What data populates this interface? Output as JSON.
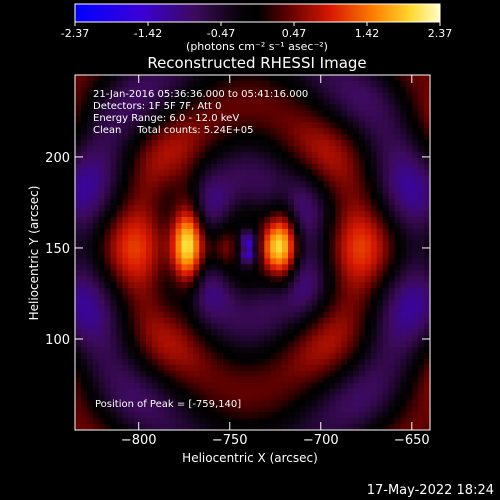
{
  "colorbar": {
    "ticks": [
      "-2.37",
      "-1.42",
      "-0.47",
      "0.47",
      "1.42",
      "2.37"
    ],
    "unit_label": "(photons cm⁻² s⁻¹ asec⁻²)"
  },
  "chart_data": {
    "type": "heatmap",
    "title": "Reconstructed RHESSI Image",
    "xlabel": "Heliocentric X (arcsec)",
    "ylabel": "Heliocentric Y (arcsec)",
    "xlim": [
      -835,
      -640
    ],
    "ylim": [
      50,
      245
    ],
    "x_ticks": [
      -800,
      -750,
      -700,
      -650
    ],
    "y_ticks": [
      100,
      150,
      200
    ],
    "value_range": [
      -2.37,
      2.37
    ],
    "peak": {
      "x": -759,
      "y": 140
    },
    "info_lines": [
      "21-Jan-2016 05:36:36.000 to 05:41:16.000",
      "Detectors: 1F 5F 7F, Att 0",
      "Energy Range: 6.0 - 12.0 keV",
      "Clean     Total counts: 5.24E+05"
    ],
    "peak_label": "Position of Peak = [-759,140]"
  },
  "footer": {
    "timestamp": "17-May-2022 18:24"
  }
}
